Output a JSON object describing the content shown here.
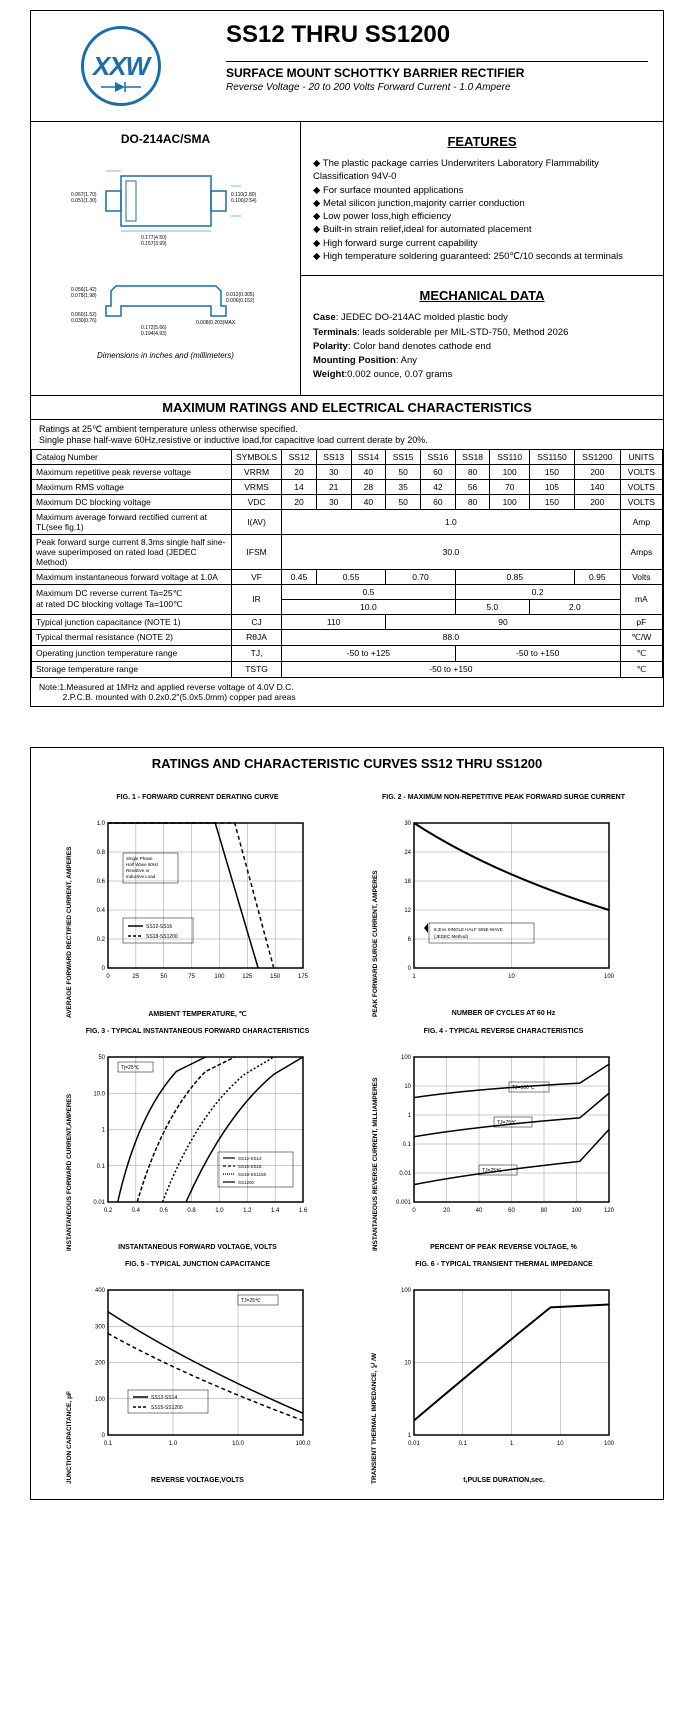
{
  "header": {
    "logo_text": "XXW",
    "title": "SS12 THRU SS1200",
    "subtitle": "SURFACE MOUNT SCHOTTKY BARRIER RECTIFIER",
    "specs": "Reverse Voltage - 20 to 200 Volts    Forward Current - 1.0 Ampere"
  },
  "package": {
    "title": "DO-214AC/SMA",
    "dim_note": "Dimensions in inches and (millimeters)",
    "dims": {
      "w_top": "0.067(1.70)\n0.051(1.30)",
      "h_right": "0.110(2.80)\n0.100(2.54)",
      "w_bot": "0.177(4.50)\n0.157(3.99)"
    }
  },
  "features": {
    "title": "FEATURES",
    "items": [
      "The plastic package carries Underwriters Laboratory Flammability Classification 94V-0",
      "For surface mounted applications",
      "Metal silicon junction,majority carrier conduction",
      "Low power loss,high efficiency",
      "Built-in strain relief,ideal for automated placement",
      "High forward surge current capability",
      "High temperature soldering guaranteed: 250℃/10 seconds at terminals"
    ]
  },
  "mech": {
    "title": "MECHANICAL DATA",
    "case": "JEDEC DO-214AC molded plastic body",
    "terminals": "leads solderable per MIL-STD-750, Method 2026",
    "polarity": "Color band denotes cathode end",
    "mounting": "Any",
    "weight": "0.002 ounce, 0.07 grams"
  },
  "ratings": {
    "title": "MAXIMUM RATINGS AND ELECTRICAL CHARACTERISTICS",
    "note": "Ratings at 25℃ ambient temperature unless otherwise specified.\nSingle phase half-wave 60Hz,resistive or inductive load,for capacitive load current derate by 20%.",
    "cols": [
      "SS12",
      "SS13",
      "SS14",
      "SS15",
      "SS16",
      "SS18",
      "SS110",
      "SS1150",
      "SS1200"
    ],
    "rows": [
      {
        "p": "Catalog  Number",
        "s": "SYMBOLS",
        "v": [
          "SS12",
          "SS13",
          "SS14",
          "SS15",
          "SS16",
          "SS18",
          "SS110",
          "SS1150",
          "SS1200"
        ],
        "u": "UNITS",
        "hdr": true
      },
      {
        "p": "Maximum repetitive peak reverse voltage",
        "s": "VRRM",
        "v": [
          "20",
          "30",
          "40",
          "50",
          "60",
          "80",
          "100",
          "150",
          "200"
        ],
        "u": "VOLTS"
      },
      {
        "p": "Maximum RMS voltage",
        "s": "VRMS",
        "v": [
          "14",
          "21",
          "28",
          "35",
          "42",
          "56",
          "70",
          "105",
          "140"
        ],
        "u": "VOLTS"
      },
      {
        "p": "Maximum DC blocking voltage",
        "s": "VDC",
        "v": [
          "20",
          "30",
          "40",
          "50",
          "60",
          "80",
          "100",
          "150",
          "200"
        ],
        "u": "VOLTS"
      },
      {
        "p": "Maximum average forward rectified current at TL(see fig.1)",
        "s": "I(AV)",
        "span": "1.0",
        "u": "Amp"
      },
      {
        "p": "Peak forward surge current 8.3ms single half sine-wave superimposed on rated load (JEDEC Method)",
        "s": "IFSM",
        "span": "30.0",
        "u": "Amps"
      },
      {
        "p": "Maximum instantaneous forward voltage at 1.0A",
        "s": "VF",
        "merge": [
          {
            "c": 1,
            "v": "0.45"
          },
          {
            "c": 2,
            "v": "0.55"
          },
          {
            "c": 2,
            "v": "0.70"
          },
          {
            "c": 3,
            "v": "0.85"
          },
          {
            "c": 1,
            "v": "0.95"
          }
        ],
        "u": "Volts"
      }
    ],
    "ir_rows": {
      "p": "Maximum DC reverse current     Ta=25℃\nat rated DC blocking voltage        Ta=100℃",
      "s": "IR",
      "r1": [
        {
          "c": 5,
          "v": "0.5"
        },
        {
          "c": 4,
          "v": "0.2"
        }
      ],
      "r2": [
        {
          "c": 5,
          "v": "10.0"
        },
        {
          "c": 2,
          "v": "5.0"
        },
        {
          "c": 2,
          "v": "2.0"
        }
      ],
      "u": "mA"
    },
    "cap_row": {
      "p": "Typical junction capacitance (NOTE 1)",
      "s": "CJ",
      "merge": [
        {
          "c": 3,
          "v": "110"
        },
        {
          "c": 6,
          "v": "90"
        }
      ],
      "u": "pF"
    },
    "rth_row": {
      "p": "Typical thermal resistance (NOTE 2)",
      "s": "RθJA",
      "span": "88.0",
      "u": "℃/W"
    },
    "tj_row": {
      "p": "Operating junction temperature range",
      "s": "TJ,",
      "merge": [
        {
          "c": 5,
          "v": "-50 to +125"
        },
        {
          "c": 4,
          "v": "-50 to +150"
        }
      ],
      "u": "℃"
    },
    "tstg_row": {
      "p": "Storage temperature range",
      "s": "TSTG",
      "span": "-50 to +150",
      "u": "℃"
    },
    "footnote": "Note:1.Measured at 1MHz and applied reverse voltage of 4.0V D.C.\n          2.P.C.B. mounted with 0.2x0.2\"(5.0x5.0mm) copper pad areas"
  },
  "curves": {
    "title": "RATINGS AND CHARACTERISTIC CURVES SS12 THRU SS1200",
    "figs": [
      {
        "t": "FIG. 1 - FORWARD CURRENT DERATING CURVE",
        "yl": "AVERAGE FORWARD RECTIFIED CURRENT, AMPERES",
        "xl": "AMBIENT TEMPERATURE, ℃",
        "xticks": [
          "0",
          "25",
          "50",
          "75",
          "100",
          "125",
          "150",
          "175"
        ],
        "yticks": [
          "0",
          "0.2",
          "0.4",
          "0.6",
          "0.8",
          "1.0"
        ],
        "legend": [
          "— SS12-SS16",
          "--- SS18-SS1200"
        ],
        "note": "Single Phase\nHalf Wave 60Hz\nResistive or\nInductive Load",
        "type": "derating"
      },
      {
        "t": "FIG. 2 - MAXIMUM NON-REPETITIVE PEAK FORWARD SURGE CURRENT",
        "yl": "PEAK FORWARD SURGE CURRENT, AMPERES",
        "xl": "NUMBER OF CYCLES AT 60 Hz",
        "xticks": [
          "1",
          "10",
          "100"
        ],
        "yticks": [
          "0",
          "6",
          "12",
          "18",
          "24",
          "30"
        ],
        "note": "8.3ms SINGLE HALF SINE-WAVE\n(JEDEC Method)",
        "type": "surge",
        "log": "x"
      },
      {
        "t": "FIG. 3 - TYPICAL INSTANTANEOUS FORWARD CHARACTERISTICS",
        "yl": "INSTANTANEOUS FORWARD CURRENT,AMPERES",
        "xl": "INSTANTANEOUS FORWARD VOLTAGE, VOLTS",
        "xticks": [
          "0.2",
          "0.4",
          "0.6",
          "0.8",
          "1.0",
          "1.2",
          "1.4",
          "1.6"
        ],
        "yticks": [
          "0.01",
          "0.1",
          "1",
          "10.0",
          "50"
        ],
        "legend": [
          "— SS12-SS14",
          "--- SS15-SS16",
          "--- SS18-SS1150",
          "— SS1200"
        ],
        "note": "Tj=25℃",
        "type": "vf",
        "log": "y"
      },
      {
        "t": "FIG. 4 - TYPICAL REVERSE CHARACTERISTICS",
        "yl": "INSTANTANEOUS REVERSE CURRENT, MILLIAMPERES",
        "xl": "PERCENT OF PEAK REVERSE VOLTAGE, %",
        "xticks": [
          "0",
          "20",
          "40",
          "60",
          "80",
          "100",
          "120"
        ],
        "yticks": [
          "0.001",
          "0.01",
          "0.1",
          "1",
          "10",
          "100"
        ],
        "legend": [
          "TJ=100℃",
          "TJ=75℃",
          "TJ=25℃"
        ],
        "type": "reverse",
        "log": "y"
      },
      {
        "t": "FIG. 5 - TYPICAL JUNCTION CAPACITANCE",
        "yl": "JUNCTION CAPACITANCE, pF",
        "xl": "REVERSE VOLTAGE,VOLTS",
        "xticks": [
          "0.1",
          "1.0",
          "10.0",
          "100.0"
        ],
        "yticks": [
          "0",
          "100",
          "200",
          "300",
          "400"
        ],
        "legend": [
          "— SS12-SS14",
          "--- SS15-SS1200"
        ],
        "note": "TJ=25℃",
        "type": "cap",
        "log": "x"
      },
      {
        "t": "FIG. 6 - TYPICAL TRANSIENT THERMAL IMPEDANCE",
        "yl": "TRANSIENT THERMAL IMPEDANCE, ℃/W",
        "xl": "t,PULSE DURATION,sec.",
        "xticks": [
          "0.01",
          "0.1",
          "1",
          "10",
          "100"
        ],
        "yticks": [
          "1",
          "10",
          "100"
        ],
        "type": "thermal",
        "log": "xy"
      }
    ]
  },
  "colors": {
    "brand": "#1a6fa8",
    "line": "#000000",
    "grid": "#888888"
  }
}
